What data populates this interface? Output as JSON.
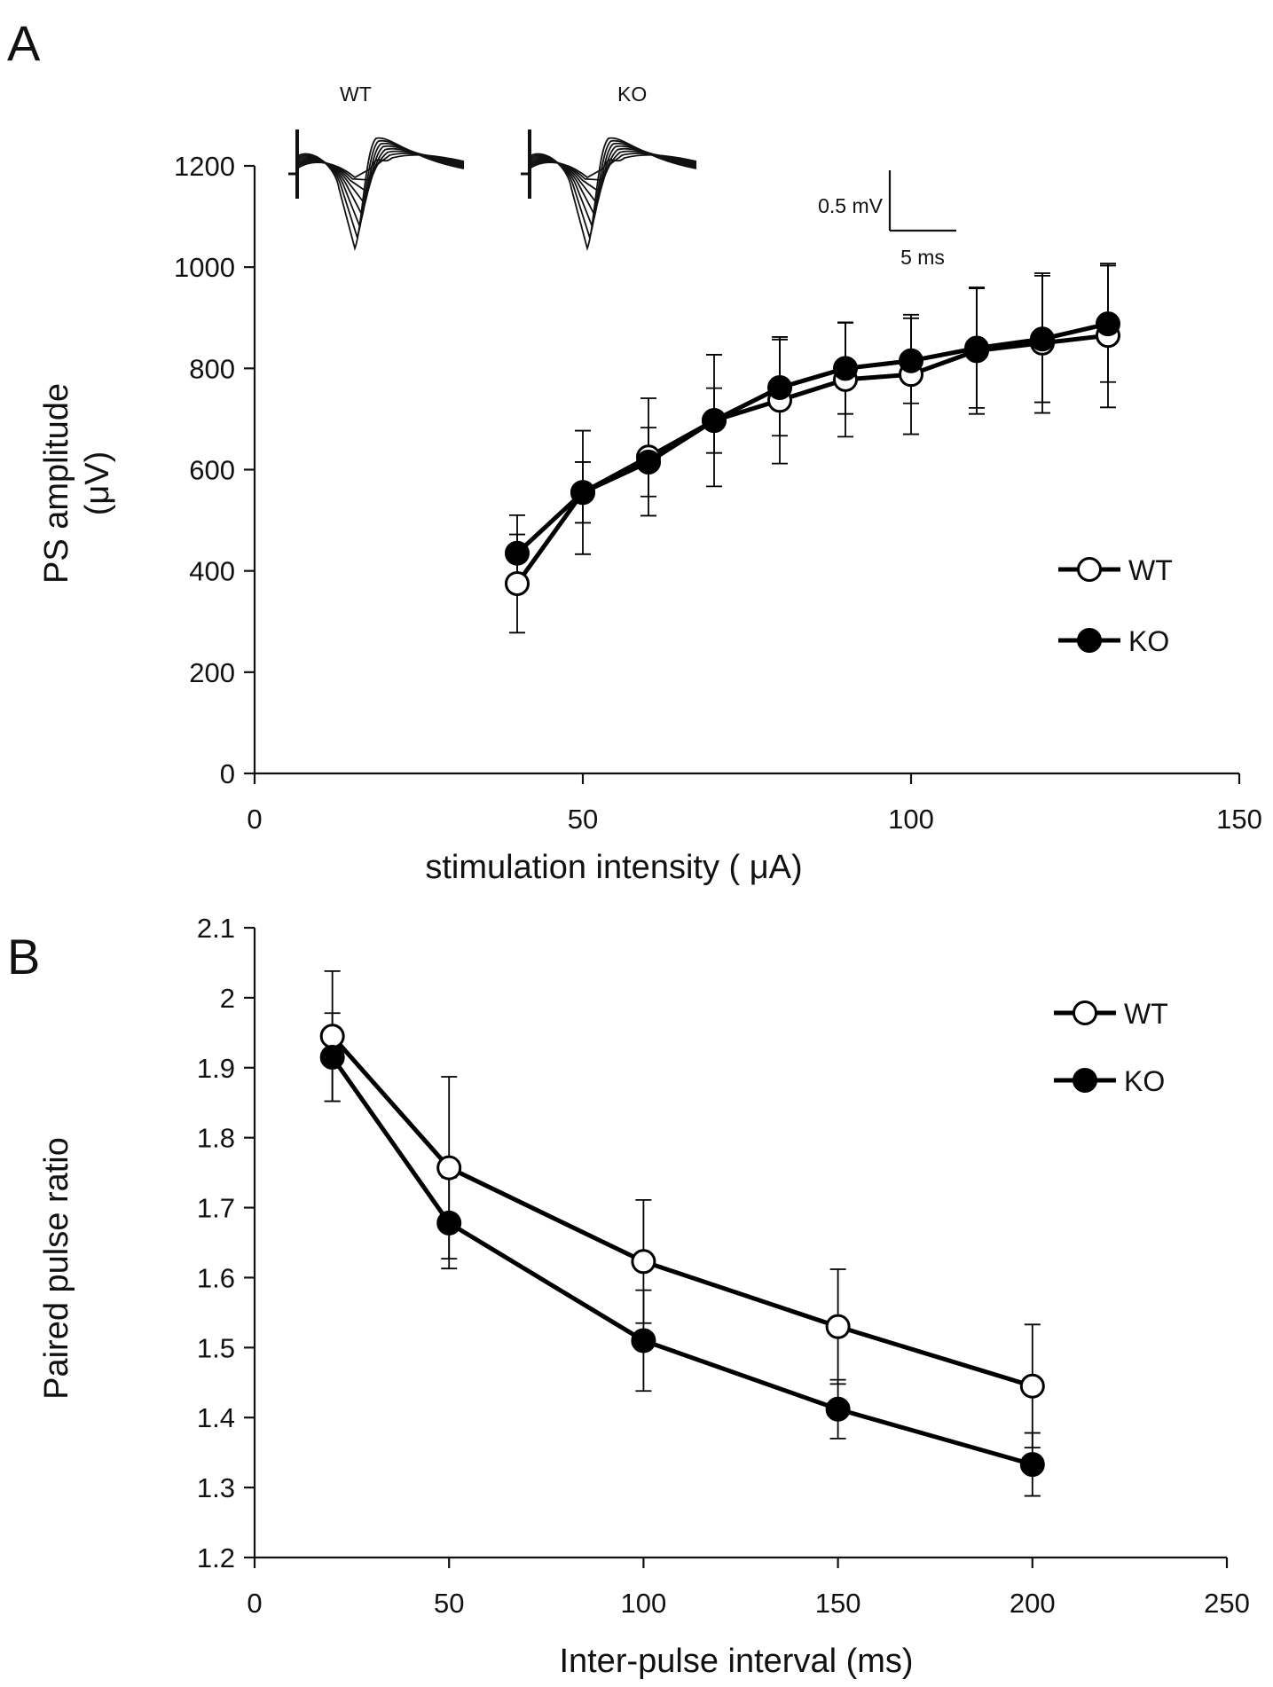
{
  "chart_data": [
    {
      "panel": "A",
      "type": "line",
      "title": "",
      "xlabel": "stimulation intensity ( μA)",
      "ylabel_lines": [
        "PS amplitude",
        "(μV)"
      ],
      "xlim": [
        0,
        150
      ],
      "ylim": [
        0,
        1200
      ],
      "xticks": [
        0,
        50,
        100,
        150
      ],
      "yticks": [
        0,
        200,
        400,
        600,
        800,
        1000,
        1200
      ],
      "x": [
        40,
        50,
        60,
        70,
        80,
        90,
        100,
        110,
        120,
        130
      ],
      "series": [
        {
          "name": "WT",
          "marker": "open-circle",
          "values": [
            375,
            555,
            625,
            697,
            737,
            778,
            788,
            835,
            850,
            865
          ],
          "error": [
            97,
            122,
            116,
            130,
            125,
            113,
            118,
            125,
            138,
            142
          ]
        },
        {
          "name": "KO",
          "marker": "filled-circle",
          "values": [
            435,
            555,
            615,
            697,
            762,
            800,
            815,
            840,
            858,
            888
          ],
          "error": [
            75,
            60,
            68,
            64,
            95,
            90,
            84,
            118,
            125,
            115
          ]
        }
      ],
      "legend_position": "right",
      "grid": false,
      "inset": {
        "trace_labels": [
          "WT",
          "KO"
        ],
        "scale_bar_voltage": "0.5 mV",
        "scale_bar_time": "5 ms"
      }
    },
    {
      "panel": "B",
      "type": "line",
      "title": "",
      "xlabel": "Inter-pulse interval (ms)",
      "ylabel": "Paired pulse ratio",
      "xlim": [
        0,
        250
      ],
      "ylim": [
        1.2,
        2.1
      ],
      "xticks": [
        0,
        50,
        100,
        150,
        200,
        250
      ],
      "yticks": [
        1.2,
        1.3,
        1.4,
        1.5,
        1.6,
        1.7,
        1.8,
        1.9,
        2,
        2.1
      ],
      "x": [
        20,
        50,
        100,
        150,
        200
      ],
      "series": [
        {
          "name": "WT",
          "marker": "open-circle",
          "values": [
            1.945,
            1.757,
            1.623,
            1.53,
            1.445
          ],
          "error": [
            0.093,
            0.13,
            0.088,
            0.082,
            0.088
          ]
        },
        {
          "name": "KO",
          "marker": "filled-circle",
          "values": [
            1.915,
            1.678,
            1.51,
            1.412,
            1.333
          ],
          "error": [
            0.063,
            0.065,
            0.072,
            0.042,
            0.045
          ]
        }
      ],
      "legend_position": "top-right",
      "grid": false
    }
  ]
}
